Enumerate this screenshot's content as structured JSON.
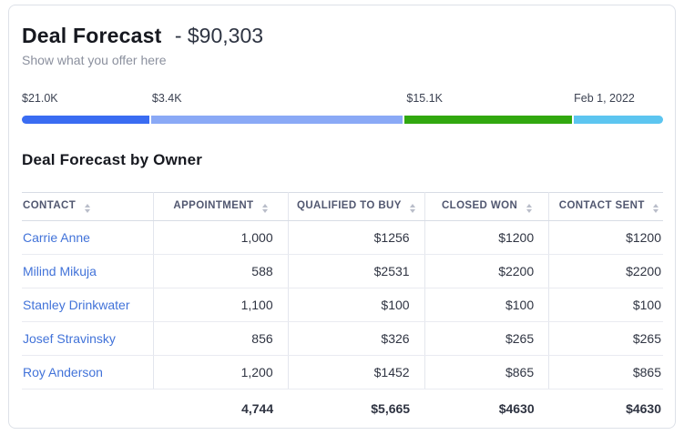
{
  "header": {
    "title": "Deal Forecast",
    "amount": "- $90,303",
    "subtitle": "Show what you offer here"
  },
  "progress": {
    "segments": [
      {
        "label": "$21.0K",
        "color": "#3a6cf2"
      },
      {
        "label": "$3.4K",
        "color": "#8aa9f6"
      },
      {
        "label": "$15.1K",
        "color": "#31a80f"
      },
      {
        "label": "Feb 1, 2022",
        "color": "#5cc5f0"
      }
    ]
  },
  "table": {
    "section_title": "Deal Forecast by Owner",
    "columns": [
      "CONTACT",
      "APPOINTMENT",
      "QUALIFIED TO BUY",
      "CLOSED WON",
      "CONTACT SENT"
    ],
    "rows": [
      {
        "contact": "Carrie Anne",
        "appointment": "1,000",
        "qualified": "$1256",
        "closed": "$1200",
        "sent": "$1200"
      },
      {
        "contact": "Milind Mikuja",
        "appointment": "588",
        "qualified": "$2531",
        "closed": "$2200",
        "sent": "$2200"
      },
      {
        "contact": "Stanley Drinkwater",
        "appointment": "1,100",
        "qualified": "$100",
        "closed": "$100",
        "sent": "$100"
      },
      {
        "contact": "Josef Stravinsky",
        "appointment": "856",
        "qualified": "$326",
        "closed": "$265",
        "sent": "$265"
      },
      {
        "contact": "Roy Anderson",
        "appointment": "1,200",
        "qualified": "$1452",
        "closed": "$865",
        "sent": "$865"
      }
    ],
    "totals": {
      "appointment": "4,744",
      "qualified": "$5,665",
      "closed": "$4630",
      "sent": "$4630"
    }
  }
}
